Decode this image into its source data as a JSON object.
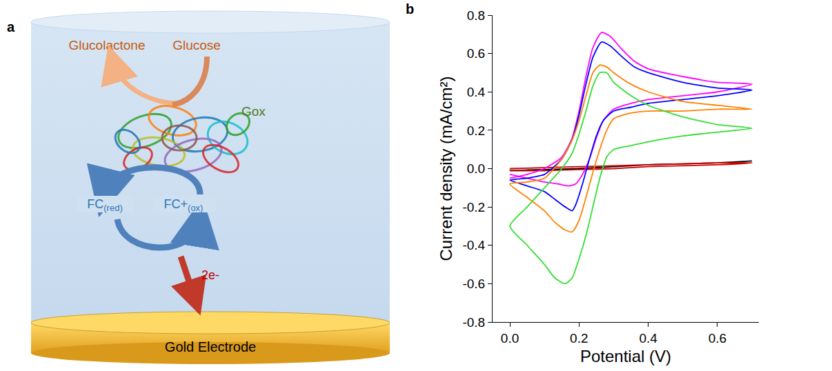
{
  "panels": {
    "a": "a",
    "b": "b"
  },
  "diagram": {
    "products": {
      "left": "Glucolactone",
      "right": "Glucose"
    },
    "enzyme": "Gox",
    "mediator": {
      "reduced": {
        "main": "FC",
        "sub": "(red)"
      },
      "oxidized": {
        "main": "FC+",
        "sub": "(ox)"
      }
    },
    "electrons": "2e-",
    "electrode": "Gold Electrode"
  },
  "chart_data": {
    "type": "line",
    "x_label": "Potential (V)",
    "y_label": "Current density (mA/cm²)",
    "xlim": [
      -0.05,
      0.72
    ],
    "xticks": [
      {
        "value": 0,
        "label": "0.0"
      },
      0.2,
      0.4,
      0.6
    ],
    "ylim": [
      -0.8,
      0.8
    ],
    "yticks": [
      -0.8,
      -0.6,
      -0.4,
      -0.2,
      {
        "value": 0,
        "label": "0.0"
      },
      0.2,
      0.4,
      0.6,
      0.8
    ],
    "grid": false,
    "series": [
      {
        "color": "#000000",
        "x": [
          0,
          0.1,
          0.2,
          0.3,
          0.4,
          0.5,
          0.6,
          0.7,
          0.6,
          0.5,
          0.4,
          0.3,
          0.2,
          0.1,
          0
        ],
        "values": [
          -0.01,
          -0.005,
          0.0,
          0.01,
          0.02,
          0.025,
          0.03,
          0.04,
          0.03,
          0.025,
          0.02,
          0.01,
          0.0,
          -0.01,
          -0.01
        ]
      },
      {
        "color": "#cc0000",
        "x": [
          0,
          0.1,
          0.2,
          0.3,
          0.4,
          0.5,
          0.6,
          0.7,
          0.6,
          0.5,
          0.4,
          0.3,
          0.2,
          0.1,
          0
        ],
        "values": [
          0.0,
          0.005,
          0.01,
          0.015,
          0.02,
          0.025,
          0.03,
          0.03,
          0.02,
          0.015,
          0.01,
          0.0,
          -0.005,
          -0.01,
          -0.01
        ]
      },
      {
        "color": "#ff00ff",
        "x": [
          0,
          0.05,
          0.1,
          0.15,
          0.18,
          0.2,
          0.22,
          0.24,
          0.265,
          0.29,
          0.32,
          0.36,
          0.4,
          0.5,
          0.6,
          0.7,
          0.6,
          0.5,
          0.4,
          0.35,
          0.3,
          0.27,
          0.25,
          0.23,
          0.21,
          0.19,
          0.17,
          0.14,
          0.1,
          0.05,
          0
        ],
        "values": [
          -0.05,
          -0.03,
          0.0,
          0.06,
          0.16,
          0.3,
          0.48,
          0.63,
          0.71,
          0.69,
          0.63,
          0.56,
          0.52,
          0.48,
          0.45,
          0.44,
          0.4,
          0.38,
          0.36,
          0.34,
          0.31,
          0.25,
          0.16,
          0.05,
          -0.03,
          -0.08,
          -0.09,
          -0.08,
          -0.07,
          -0.05,
          -0.03
        ]
      },
      {
        "color": "#0000ff",
        "x": [
          0,
          0.05,
          0.1,
          0.15,
          0.18,
          0.2,
          0.22,
          0.24,
          0.265,
          0.29,
          0.32,
          0.36,
          0.4,
          0.5,
          0.6,
          0.7,
          0.6,
          0.5,
          0.4,
          0.35,
          0.3,
          0.27,
          0.25,
          0.23,
          0.21,
          0.19,
          0.18,
          0.16,
          0.13,
          0.1,
          0.05,
          0
        ],
        "values": [
          -0.06,
          -0.05,
          -0.03,
          0.05,
          0.15,
          0.28,
          0.44,
          0.58,
          0.66,
          0.64,
          0.59,
          0.53,
          0.5,
          0.45,
          0.42,
          0.41,
          0.38,
          0.36,
          0.34,
          0.32,
          0.3,
          0.25,
          0.17,
          0.05,
          -0.08,
          -0.19,
          -0.22,
          -0.2,
          -0.16,
          -0.12,
          -0.09,
          -0.06
        ]
      },
      {
        "color": "#ff8000",
        "x": [
          0,
          0.05,
          0.1,
          0.15,
          0.18,
          0.2,
          0.22,
          0.24,
          0.26,
          0.28,
          0.3,
          0.35,
          0.4,
          0.5,
          0.6,
          0.7,
          0.6,
          0.5,
          0.4,
          0.35,
          0.3,
          0.28,
          0.26,
          0.24,
          0.22,
          0.2,
          0.18,
          0.16,
          0.13,
          0.1,
          0.05,
          0
        ],
        "values": [
          -0.08,
          -0.07,
          -0.05,
          0.05,
          0.15,
          0.25,
          0.38,
          0.5,
          0.54,
          0.53,
          0.5,
          0.44,
          0.4,
          0.35,
          0.33,
          0.31,
          0.31,
          0.3,
          0.3,
          0.29,
          0.26,
          0.2,
          0.1,
          -0.02,
          -0.15,
          -0.27,
          -0.33,
          -0.32,
          -0.28,
          -0.22,
          -0.15,
          -0.08
        ]
      },
      {
        "color": "#33dd33",
        "x": [
          0,
          0.05,
          0.1,
          0.15,
          0.18,
          0.2,
          0.22,
          0.24,
          0.26,
          0.28,
          0.3,
          0.35,
          0.4,
          0.5,
          0.6,
          0.7,
          0.6,
          0.5,
          0.4,
          0.35,
          0.3,
          0.28,
          0.26,
          0.24,
          0.22,
          0.2,
          0.18,
          0.16,
          0.13,
          0.1,
          0.05,
          0
        ],
        "values": [
          -0.3,
          -0.2,
          -0.1,
          0.0,
          0.08,
          0.18,
          0.3,
          0.43,
          0.5,
          0.5,
          0.45,
          0.38,
          0.33,
          0.27,
          0.23,
          0.21,
          0.19,
          0.17,
          0.14,
          0.12,
          0.1,
          0.06,
          -0.05,
          -0.2,
          -0.35,
          -0.47,
          -0.57,
          -0.6,
          -0.57,
          -0.5,
          -0.4,
          -0.3
        ]
      }
    ]
  }
}
